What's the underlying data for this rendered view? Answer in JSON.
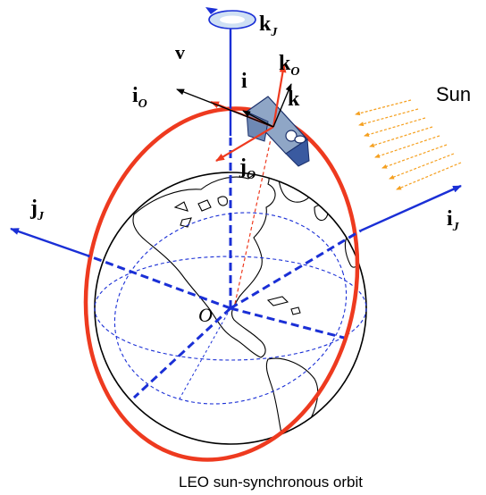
{
  "labels": {
    "sun": "Sun",
    "orbit_caption": "LEO sun-synchronous orbit",
    "origin": "O",
    "velocity": "v",
    "k_J": {
      "base": "k",
      "sub": "J"
    },
    "k_O": {
      "base": "k",
      "sub": "O"
    },
    "i_O": {
      "base": "i",
      "sub": "O"
    },
    "j_O": {
      "base": "j",
      "sub": "O"
    },
    "i_J": {
      "base": "i",
      "sub": "J"
    },
    "j_J": {
      "base": "j",
      "sub": "J"
    },
    "i_body": "i",
    "k_body": "k"
  },
  "colors": {
    "orbit": "#ee3a1f",
    "inertial_axes": "#1a2fd6",
    "orbit_axes": "#ee3a1f",
    "body_axes": "#000000",
    "sun_rays": "#f5a020",
    "satellite": "#8fa6c6"
  },
  "icons": [
    "globe-icon",
    "satellite-icon",
    "rotation-arrow-icon",
    "sun-rays-icon"
  ]
}
